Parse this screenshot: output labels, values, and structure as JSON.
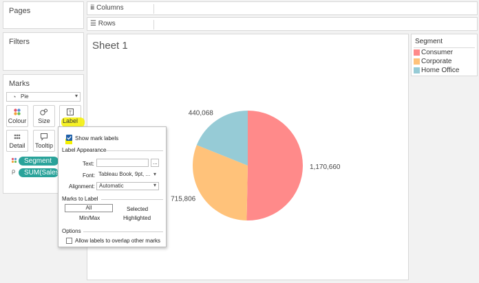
{
  "left_panels": {
    "pages_title": "Pages",
    "filters_title": "Filters",
    "marks_title": "Marks",
    "mark_type": "Pie",
    "mark_cards": [
      "Colour",
      "Size",
      "Label",
      "Detail",
      "Tooltip"
    ],
    "pills": [
      "Segment",
      "SUM(Sales)"
    ]
  },
  "shelves": {
    "columns": "Columns",
    "rows": "Rows"
  },
  "sheet_title": "Sheet 1",
  "legend": {
    "title": "Segment",
    "items": [
      {
        "label": "Consumer",
        "color": "#ff8a8a"
      },
      {
        "label": "Corporate",
        "color": "#ffc27a"
      },
      {
        "label": "Home Office",
        "color": "#96cbd6"
      }
    ]
  },
  "popup": {
    "show_labels": "Show mark labels",
    "label_appearance": "Label Appearance",
    "text_label": "Text:",
    "text_btn": "...",
    "font_label": "Font:",
    "font_value": "Tableau Book, 9pt, ...",
    "alignment_label": "Alignment:",
    "alignment_value": "Automatic",
    "marks_to_label": "Marks to Label",
    "opt_all": "All",
    "opt_selected": "Selected",
    "opt_minmax": "Min/Max",
    "opt_highlighted": "Highlighted",
    "options": "Options",
    "overlap": "Allow labels to overlap other marks"
  },
  "chart_data": {
    "type": "pie",
    "labels": [
      "Consumer",
      "Corporate",
      "Home Office"
    ],
    "values": [
      1170660,
      715806,
      440068
    ],
    "value_labels": [
      "1,170,660",
      "715,806",
      "440,068"
    ],
    "colors": [
      "#ff8a8a",
      "#ffc27a",
      "#96cbd6"
    ]
  }
}
